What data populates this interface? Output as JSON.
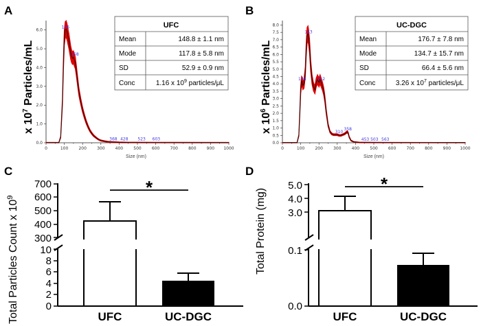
{
  "panels": {
    "A": "A",
    "B": "B",
    "C": "C",
    "D": "D"
  },
  "chart_data": [
    {
      "id": "A",
      "type": "line",
      "ylabel_main": "x 10",
      "ylabel_exp": "7",
      "ylabel_unit": " Particles/mL",
      "xlabel": "Size (nm)",
      "xlim": [
        0,
        1000
      ],
      "ylim": [
        0,
        6.5
      ],
      "xticks": [
        0,
        50,
        100,
        150,
        200,
        250,
        300,
        350,
        400,
        450,
        500,
        550,
        600,
        650,
        700,
        750,
        800,
        850,
        900,
        950,
        1000
      ],
      "yticks": [
        "0.0",
        "1.0",
        "2.0",
        "3.0",
        "4.0",
        "5.0",
        "6.0"
      ],
      "x": [
        0,
        70,
        80,
        90,
        95,
        100,
        105,
        110,
        115,
        120,
        125,
        130,
        135,
        140,
        145,
        150,
        155,
        160,
        165,
        170,
        175,
        180,
        190,
        200,
        210,
        220,
        230,
        240,
        250,
        260,
        270,
        280,
        290,
        300,
        320,
        340,
        360,
        380,
        400,
        450,
        500,
        600,
        700,
        1000
      ],
      "y": [
        0,
        0,
        0.3,
        2.2,
        4.2,
        5.6,
        6.0,
        6.05,
        5.9,
        5.65,
        5.4,
        5.1,
        4.8,
        4.6,
        4.5,
        4.55,
        4.4,
        4.25,
        3.9,
        3.5,
        3.1,
        2.7,
        2.2,
        1.75,
        1.4,
        1.1,
        0.85,
        0.65,
        0.5,
        0.38,
        0.3,
        0.22,
        0.16,
        0.12,
        0.08,
        0.05,
        0.04,
        0.03,
        0.02,
        0.01,
        0.01,
        0.005,
        0.003,
        0
      ],
      "peak_labels": [
        {
          "x": 106,
          "y": 6.05,
          "text": "106"
        },
        {
          "x": 158,
          "y": 4.6,
          "text": "158"
        },
        {
          "x": 368,
          "y": 0.1,
          "text": "368"
        },
        {
          "x": 428,
          "y": 0.1,
          "text": "428"
        },
        {
          "x": 523,
          "y": 0.1,
          "text": "523"
        },
        {
          "x": 603,
          "y": 0.1,
          "text": "603"
        }
      ],
      "table": {
        "title": "UFC",
        "rows": [
          {
            "label": "Mean",
            "value": "148.8 ± 1.1 nm"
          },
          {
            "label": "Mode",
            "value": "117.8 ± 5.8 nm"
          },
          {
            "label": "SD",
            "value": "52.9 ± 0.9 nm"
          },
          {
            "label": "Conc",
            "value": "1.16 x 10",
            "sup": "9",
            "tail": " particles/μL"
          }
        ]
      }
    },
    {
      "id": "B",
      "type": "line",
      "ylabel_main": "x 10",
      "ylabel_exp": "6",
      "ylabel_unit": " Particles/mL",
      "xlabel": "Size (nm)",
      "xlim": [
        0,
        1000
      ],
      "ylim": [
        0,
        8.3
      ],
      "xticks": [
        0,
        50,
        100,
        150,
        200,
        250,
        300,
        350,
        400,
        450,
        500,
        550,
        600,
        650,
        700,
        750,
        800,
        850,
        900,
        950,
        1000
      ],
      "yticks": [
        "0.0",
        "0.5",
        "1.0",
        "1.5",
        "2.0",
        "2.5",
        "3.0",
        "3.5",
        "4.0",
        "4.5",
        "5.0",
        "5.5",
        "6.0",
        "6.5",
        "7.0",
        "7.5",
        "8.0"
      ],
      "x": [
        0,
        80,
        90,
        95,
        100,
        105,
        108,
        112,
        118,
        125,
        130,
        135,
        140,
        143,
        148,
        155,
        162,
        170,
        178,
        185,
        192,
        200,
        206,
        212,
        220,
        226,
        232,
        240,
        250,
        260,
        270,
        280,
        290,
        300,
        310,
        320,
        330,
        340,
        350,
        355,
        360,
        365,
        375,
        390,
        420,
        500,
        600,
        1000
      ],
      "y": [
        0,
        0,
        0.5,
        2.0,
        3.6,
        4.2,
        4.15,
        3.9,
        4.0,
        4.8,
        6.3,
        7.3,
        7.4,
        7.2,
        6.6,
        5.2,
        4.3,
        3.8,
        3.6,
        4.1,
        4.3,
        4.1,
        4.3,
        4.1,
        3.8,
        3.5,
        3.0,
        2.1,
        1.2,
        0.75,
        0.6,
        0.55,
        0.55,
        0.55,
        0.5,
        0.5,
        0.55,
        0.6,
        0.7,
        0.75,
        0.65,
        0.4,
        0.15,
        0.06,
        0.02,
        0.01,
        0.005,
        0
      ],
      "peak_labels": [
        {
          "x": 143,
          "y": 7.4,
          "text": "143"
        },
        {
          "x": 108,
          "y": 4.2,
          "text": "108"
        },
        {
          "x": 212,
          "y": 4.2,
          "text": "212"
        },
        {
          "x": 310,
          "y": 0.6,
          "text": "310"
        },
        {
          "x": 358,
          "y": 0.8,
          "text": "358"
        },
        {
          "x": 453,
          "y": 0.1,
          "text": "453"
        },
        {
          "x": 503,
          "y": 0.1,
          "text": "503"
        },
        {
          "x": 563,
          "y": 0.1,
          "text": "563"
        }
      ],
      "table": {
        "title": "UC-DGC",
        "rows": [
          {
            "label": "Mean",
            "value": "176.7 ± 7.8 nm"
          },
          {
            "label": "Mode",
            "value": "134.7 ± 15.7 nm"
          },
          {
            "label": "SD",
            "value": "66.4 ± 5.6 nm"
          },
          {
            "label": "Conc",
            "value": "3.26 x 10",
            "sup": "7",
            "tail": " particles/μL"
          }
        ]
      }
    },
    {
      "id": "C",
      "type": "bar",
      "ylabel": "Total Particles Count x 10",
      "ylabel_exp": "9",
      "categories": [
        "UFC",
        "UC-DGC"
      ],
      "values": [
        430,
        4.4
      ],
      "errors": [
        140,
        1.4
      ],
      "ylim_upper": [
        300,
        700
      ],
      "yticks_upper": [
        "300",
        "400",
        "500",
        "600",
        "700"
      ],
      "ylim_lower": [
        0,
        10
      ],
      "yticks_lower": [
        "0",
        "2",
        "4",
        "6",
        "8",
        "10"
      ],
      "significance": "*"
    },
    {
      "id": "D",
      "type": "bar",
      "ylabel": "Total Protein (mg)",
      "categories": [
        "UFC",
        "UC-DGC"
      ],
      "values": [
        3.1,
        0.072
      ],
      "errors": [
        1.1,
        0.024
      ],
      "yticks_upper": [
        "3.0",
        "4.0",
        "5.0"
      ],
      "yticks_lower": [
        "0.0",
        "0.1"
      ],
      "significance": "*"
    }
  ]
}
